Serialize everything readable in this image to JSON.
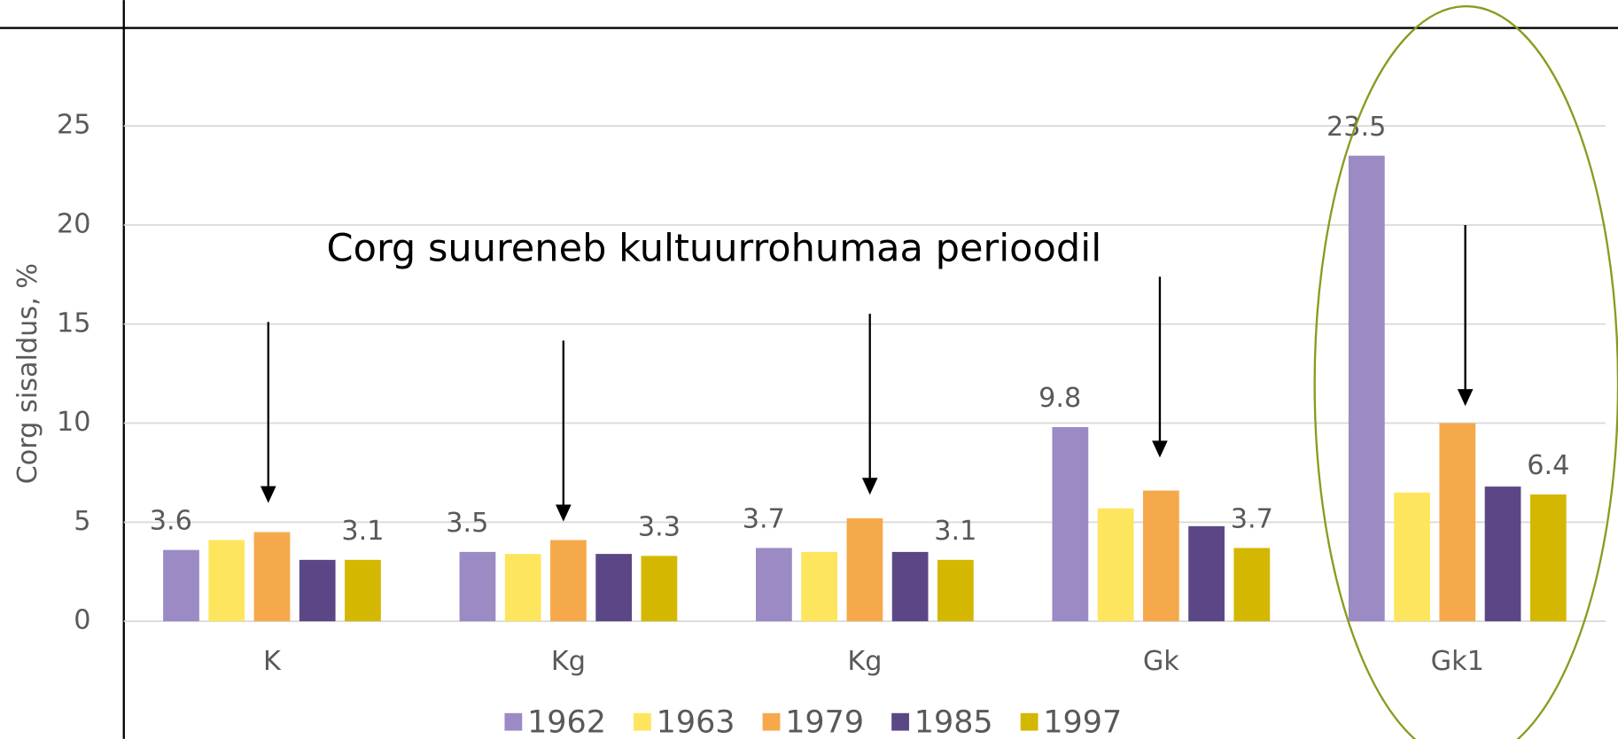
{
  "chart_data": {
    "type": "bar",
    "annotation": "Corg suureneb kultuurrohumaa perioodil",
    "y_label": "Corg sisaldus, %",
    "categories": [
      "K",
      "Kg",
      "Kg",
      "Gk",
      "Gk1"
    ],
    "series": [
      {
        "name": "1962",
        "color": "#9b8ac4",
        "values": [
          3.6,
          3.5,
          3.7,
          9.8,
          23.5
        ],
        "data_labels": true
      },
      {
        "name": "1963",
        "color": "#fde65e",
        "values": [
          4.1,
          3.4,
          3.5,
          5.7,
          6.5
        ],
        "data_labels": false
      },
      {
        "name": "1979",
        "color": "#f6a94b",
        "values": [
          4.5,
          4.1,
          5.2,
          6.6,
          10.0
        ],
        "data_labels": false
      },
      {
        "name": "1985",
        "color": "#5b4785",
        "values": [
          3.1,
          3.4,
          3.5,
          4.8,
          6.8
        ],
        "data_labels": false
      },
      {
        "name": "1997",
        "color": "#d4b700",
        "values": [
          3.1,
          3.3,
          3.1,
          3.7,
          6.4
        ],
        "data_labels": true
      }
    ],
    "ylim": [
      0,
      25
    ],
    "yticks": [
      0,
      5,
      10,
      15,
      20,
      25
    ],
    "grid": true,
    "legend": "bottom"
  }
}
